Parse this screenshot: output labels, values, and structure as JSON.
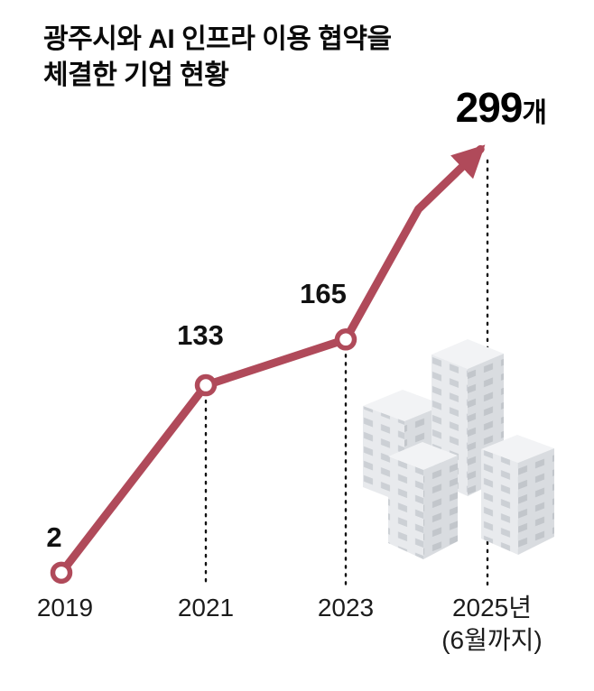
{
  "title": {
    "line1": "광주시와 AI 인프라 이용 협약을",
    "line2": "체결한 기업 현황"
  },
  "chart_data": {
    "type": "line",
    "title": "광주시와 AI 인프라 이용 협약을 체결한 기업 현황",
    "categories": [
      "2019",
      "2021",
      "2023",
      "2025년"
    ],
    "last_category_note": "(6월까지)",
    "values": [
      2,
      133,
      165,
      299
    ],
    "point_labels": [
      "2",
      "133",
      "165",
      "299"
    ],
    "last_value_unit": "개",
    "line_color": "#b04a5a",
    "point_marker": "open-circle",
    "end_marker": "arrow",
    "guides": "dotted vertical lines at 2021, 2023, 2025",
    "ylim": [
      0,
      320
    ],
    "grid": false,
    "legend": false
  },
  "decor": {
    "illustration": "isometric-office-buildings"
  }
}
